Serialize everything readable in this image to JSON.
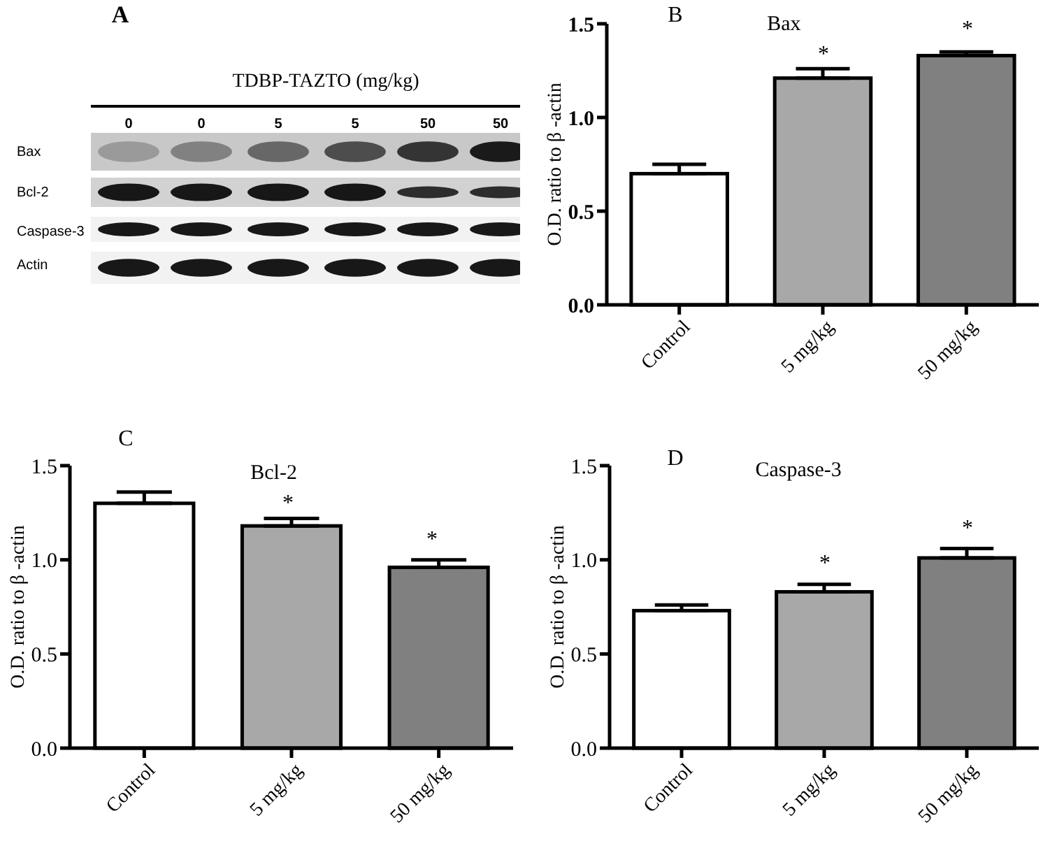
{
  "chart_data": [
    {
      "type": "other",
      "title": "TDBP-TAZTO (mg/kg)",
      "categories": [
        "0",
        "0",
        "5",
        "5",
        "50",
        "50"
      ],
      "y_categories": [
        "Bax",
        "Bcl-2",
        "Caspase-3",
        "Actin"
      ],
      "annotations": [
        "A"
      ]
    },
    {
      "type": "bar",
      "title": "Bax",
      "ylabel": "O.D. ratio to β -actin",
      "categories": [
        "Control",
        "5 mg/kg",
        "50 mg/kg"
      ],
      "values": [
        0.7,
        1.21,
        1.33
      ],
      "colors": [
        "#ffffff",
        "#a8a8a8",
        "#808080"
      ],
      "errors": [
        [
          0.7,
          0.75
        ],
        [
          1.21,
          1.26
        ],
        [
          1.33,
          1.35
        ]
      ],
      "ylim": [
        0,
        1.5
      ],
      "yticks": [
        {
          "value": 0,
          "label": "0.0"
        },
        {
          "value": 0.5,
          "label": "0.5"
        },
        {
          "value": 1,
          "label": "1.0"
        },
        {
          "value": 1.5,
          "label": "1.5"
        }
      ],
      "annotations": [
        "B",
        "*",
        "*"
      ]
    },
    {
      "type": "bar",
      "title": "Bcl-2",
      "ylabel": "O.D. ratio to β -actin",
      "categories": [
        "Control",
        "5 mg/kg",
        "50 mg/kg"
      ],
      "values": [
        1.3,
        1.18,
        0.96
      ],
      "colors": [
        "#ffffff",
        "#a8a8a8",
        "#808080"
      ],
      "errors": [
        [
          1.3,
          1.36
        ],
        [
          1.18,
          1.22
        ],
        [
          0.96,
          1.0
        ]
      ],
      "ylim": [
        0,
        1.5
      ],
      "yticks": [
        {
          "value": 0,
          "label": "0.0"
        },
        {
          "value": 0.5,
          "label": "0.5"
        },
        {
          "value": 1,
          "label": "1.0"
        },
        {
          "value": 1.5,
          "label": "1.5"
        }
      ],
      "annotations": [
        "C",
        "*",
        "*"
      ]
    },
    {
      "type": "bar",
      "title": "Caspase-3",
      "ylabel": "O.D. ratio to β -actin",
      "categories": [
        "Control",
        "5 mg/kg",
        "50 mg/kg"
      ],
      "values": [
        0.73,
        0.83,
        1.01
      ],
      "colors": [
        "#ffffff",
        "#a8a8a8",
        "#808080"
      ],
      "errors": [
        [
          0.73,
          0.76
        ],
        [
          0.83,
          0.87
        ],
        [
          1.01,
          1.06
        ]
      ],
      "ylim": [
        0,
        1.5
      ],
      "yticks": [
        {
          "value": 0,
          "label": "0.0"
        },
        {
          "value": 0.5,
          "label": "0.5"
        },
        {
          "value": 1,
          "label": "1.0"
        },
        {
          "value": 1.5,
          "label": "1.5"
        }
      ],
      "annotations": [
        "D",
        "*",
        "*"
      ]
    }
  ]
}
